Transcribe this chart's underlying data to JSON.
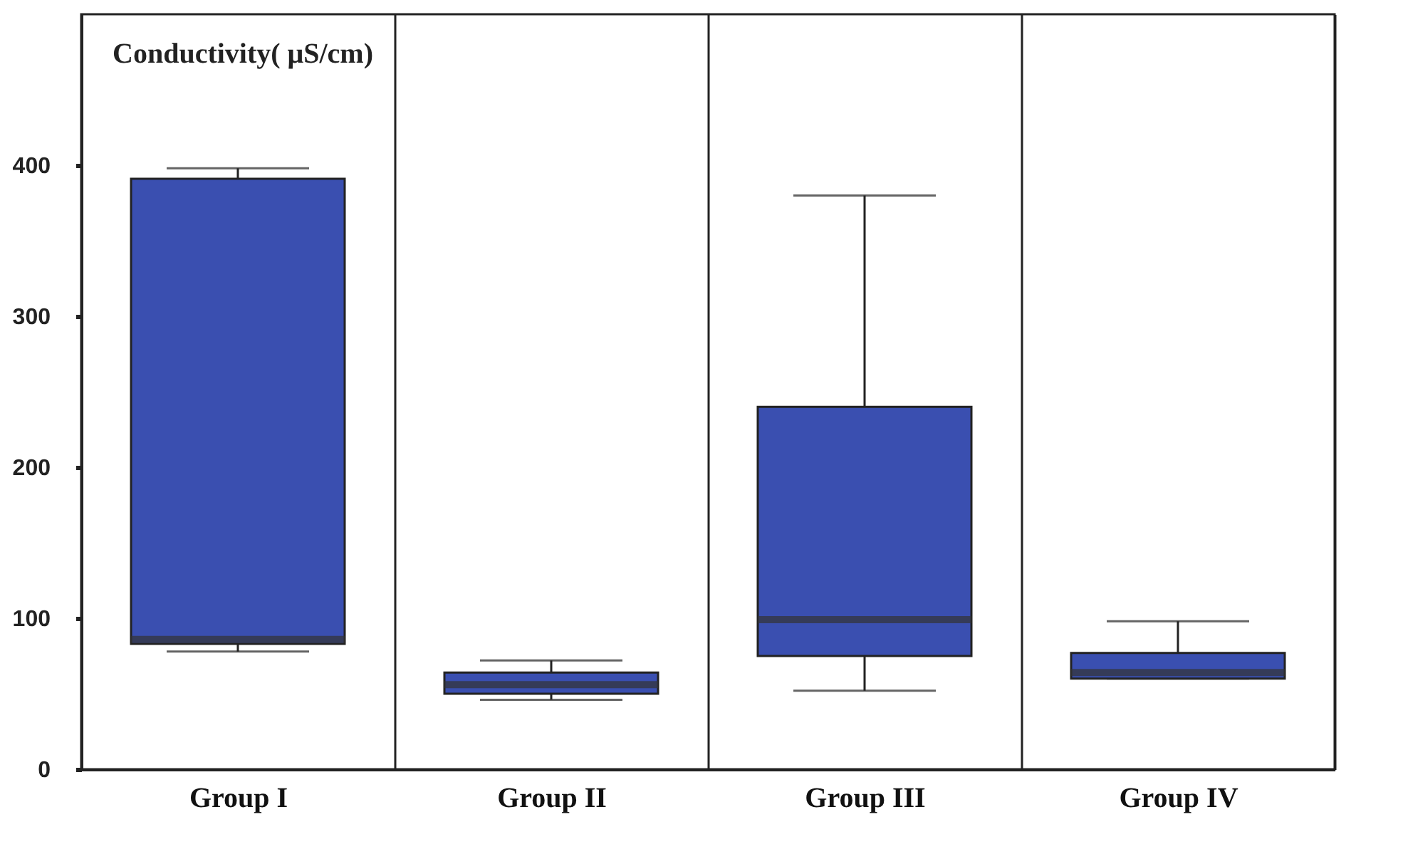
{
  "chart_data": {
    "type": "box",
    "categories": [
      "Group I",
      "Group II",
      "Group III",
      "Group IV"
    ],
    "boxes": [
      {
        "low": 78,
        "q1": 83,
        "median": 86,
        "q3": 391,
        "high": 398
      },
      {
        "low": 46,
        "q1": 50,
        "median": 56,
        "q3": 64,
        "high": 72
      },
      {
        "low": 52,
        "q1": 75,
        "median": 99,
        "q3": 240,
        "high": 380
      },
      {
        "low": 60,
        "q1": 60,
        "median": 64,
        "q3": 77,
        "high": 98
      }
    ],
    "color": "#3a4fb0",
    "ylim": [
      0,
      500
    ],
    "yticks": [
      0,
      100,
      200,
      300,
      400
    ],
    "grid": "x",
    "annotations": [
      "Conductivity( μS/cm)"
    ]
  }
}
